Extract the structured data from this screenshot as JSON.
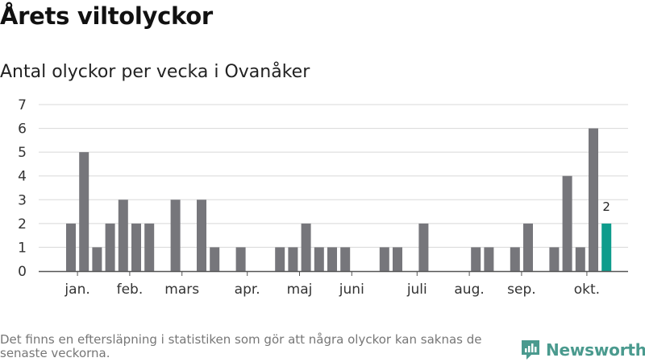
{
  "title": "Årets viltolyckor",
  "subtitle": "Antal olyckor per vecka i Ovanåker",
  "footnote": "Det finns en eftersläpning i statistiken som gör att några olyckor kan saknas de senaste veckorna.",
  "brand": "Newsworthy",
  "colors": {
    "bar": "#76767b",
    "highlight": "#0e9c8c",
    "grid": "#d8d8d8",
    "axis": "#555555",
    "brand": "#4a9a8e"
  },
  "chart_data": {
    "type": "bar",
    "xlabel": "",
    "ylabel": "",
    "ylim": [
      0,
      7
    ],
    "yticks": [
      0,
      1,
      2,
      3,
      4,
      5,
      6,
      7
    ],
    "grid": true,
    "weeks": [
      1,
      2,
      3,
      4,
      5,
      6,
      7,
      8,
      9,
      10,
      11,
      12,
      13,
      14,
      15,
      16,
      17,
      18,
      19,
      20,
      21,
      22,
      23,
      24,
      25,
      26,
      27,
      28,
      29,
      30,
      31,
      32,
      33,
      34,
      35,
      36,
      37,
      38,
      39,
      40,
      41,
      42
    ],
    "values": [
      2,
      5,
      1,
      2,
      3,
      2,
      2,
      0,
      3,
      0,
      3,
      1,
      0,
      1,
      0,
      0,
      1,
      1,
      2,
      1,
      1,
      1,
      0,
      0,
      1,
      1,
      0,
      2,
      0,
      0,
      0,
      1,
      1,
      0,
      1,
      2,
      0,
      1,
      4,
      1,
      6,
      2
    ],
    "highlight_week": 42,
    "data_labels": [
      {
        "week": 42,
        "text": "2"
      }
    ],
    "month_ticks": [
      {
        "label": "jan.",
        "week": 1.5
      },
      {
        "label": "feb.",
        "week": 5.5
      },
      {
        "label": "mars",
        "week": 9.5
      },
      {
        "label": "apr.",
        "week": 14.5
      },
      {
        "label": "maj",
        "week": 18.5
      },
      {
        "label": "juni",
        "week": 22.5
      },
      {
        "label": "juli",
        "week": 27.5
      },
      {
        "label": "aug.",
        "week": 31.5
      },
      {
        "label": "sep.",
        "week": 35.5
      },
      {
        "label": "okt.",
        "week": 40.5
      }
    ]
  }
}
